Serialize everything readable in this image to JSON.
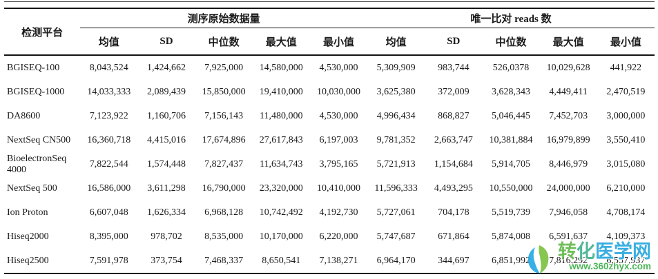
{
  "table": {
    "platform_header": "检测平台",
    "groups": [
      {
        "label": "测序原始数据量",
        "subcols": [
          "均值",
          "SD",
          "中位数",
          "最大值",
          "最小值"
        ]
      },
      {
        "label": "唯一比对 reads 数",
        "subcols": [
          "均值",
          "SD",
          "中位数",
          "最大值",
          "最小值"
        ]
      }
    ],
    "rows": [
      {
        "platform": "BGISEQ-100",
        "values": [
          "8,043,524",
          "1,424,662",
          "7,925,000",
          "14,580,000",
          "4,530,000",
          "5,309,909",
          "983,744",
          "526,0378",
          "10,029,628",
          "441,922"
        ]
      },
      {
        "platform": "BGISEQ-1000",
        "values": [
          "14,033,333",
          "2,089,439",
          "15,850,000",
          "19,410,000",
          "10,030,000",
          "3,625,380",
          "372,009",
          "3,628,343",
          "4,449,411",
          "2,470,519"
        ]
      },
      {
        "platform": "DA8600",
        "values": [
          "7,123,922",
          "1,160,706",
          "7,156,143",
          "11,480,000",
          "4,530,000",
          "4,996,434",
          "868,827",
          "5,046,445",
          "7,452,703",
          "3,000,000"
        ]
      },
      {
        "platform": "NextSeq CN500",
        "values": [
          "16,360,718",
          "4,415,016",
          "17,674,896",
          "27,617,843",
          "6,197,003",
          "9,781,352",
          "2,663,747",
          "10,381,884",
          "16,979,899",
          "3,550,410"
        ]
      },
      {
        "platform": "BioelectronSeq 4000",
        "values": [
          "7,822,544",
          "1,574,448",
          "7,827,437",
          "11,634,743",
          "3,795,165",
          "5,721,913",
          "1,154,684",
          "5,914,705",
          "8,446,979",
          "3,015,080"
        ]
      },
      {
        "platform": "NextSeq 500",
        "values": [
          "16,586,000",
          "3,611,298",
          "16,790,000",
          "23,320,000",
          "10,410,000",
          "11,596,333",
          "4,493,295",
          "10,550,000",
          "24,000,000",
          "6,210,000"
        ]
      },
      {
        "platform": "Ion Proton",
        "values": [
          "6,607,048",
          "1,626,334",
          "6,968,128",
          "10,742,492",
          "4,192,730",
          "5,727,061",
          "704,178",
          "5,519,739",
          "7,946,058",
          "4,708,174"
        ]
      },
      {
        "platform": "Hiseq2000",
        "values": [
          "8,395,000",
          "978,702",
          "8,535,000",
          "10,170,000",
          "6,220,000",
          "5,747,687",
          "671,864",
          "5,874,008",
          "6,591,637",
          "4,109,373"
        ]
      },
      {
        "platform": "Hiseq2500",
        "values": [
          "7,591,978",
          "373,754",
          "7,468,337",
          "8,650,541",
          "7,138,271",
          "6,964,170",
          "344,697",
          "6,851,992",
          "7,816,292",
          "6,557,937"
        ]
      }
    ]
  },
  "watermark": {
    "site_name": "转化医学网",
    "site_name_chars": [
      {
        "ch": "转",
        "color": "#63b94a"
      },
      {
        "ch": "化",
        "color": "#45b290"
      },
      {
        "ch": "医",
        "color": "#2aa8de"
      },
      {
        "ch": "学",
        "color": "#2aa8de"
      },
      {
        "ch": "网",
        "color": "#2aa8de"
      }
    ],
    "site_url": "www.360zhyx.com",
    "colors": {
      "leaf_green": "#7dc242",
      "swirl_blue": "#29aae1",
      "url_green": "#3fb04c"
    }
  }
}
